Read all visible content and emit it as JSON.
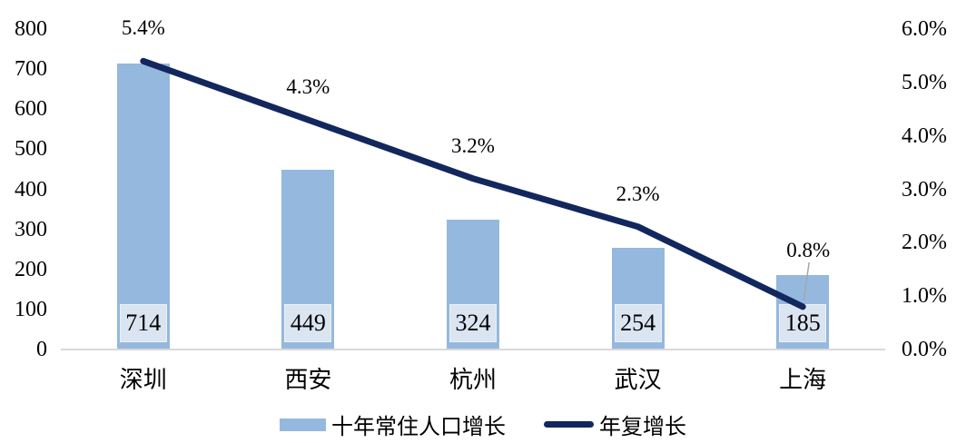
{
  "chart_data": {
    "type": "combo",
    "title": "",
    "categories": [
      "深圳",
      "西安",
      "杭州",
      "武汉",
      "上海"
    ],
    "series": [
      {
        "name": "十年常住人口增长",
        "type": "bar",
        "axis": "left",
        "values": [
          714,
          449,
          324,
          254,
          185
        ],
        "data_labels": [
          "714",
          "449",
          "324",
          "254",
          "185"
        ]
      },
      {
        "name": "年复增长",
        "type": "line",
        "axis": "right",
        "values": [
          5.4,
          4.3,
          3.2,
          2.3,
          0.8
        ],
        "data_labels": [
          "5.4%",
          "4.3%",
          "3.2%",
          "2.3%",
          "0.8%"
        ]
      }
    ],
    "left_axis": {
      "min": 0,
      "max": 800,
      "ticks": [
        "800",
        "700",
        "600",
        "500",
        "400",
        "300",
        "200",
        "100",
        "0"
      ]
    },
    "right_axis": {
      "min": 0,
      "max": 6,
      "ticks": [
        "6.0%",
        "5.0%",
        "4.0%",
        "3.0%",
        "2.0%",
        "1.0%",
        "0.0%"
      ]
    },
    "legend": {
      "position": "bottom"
    },
    "grid": false
  },
  "colors": {
    "bar": "#95B8DE",
    "bar_value_box_bg": "#DAE5F1",
    "line": "#12275E",
    "axis_line": "#D9D9D9",
    "leader_line": "#A6A6A6",
    "text": "#000000",
    "background": "#FFFFFF"
  }
}
